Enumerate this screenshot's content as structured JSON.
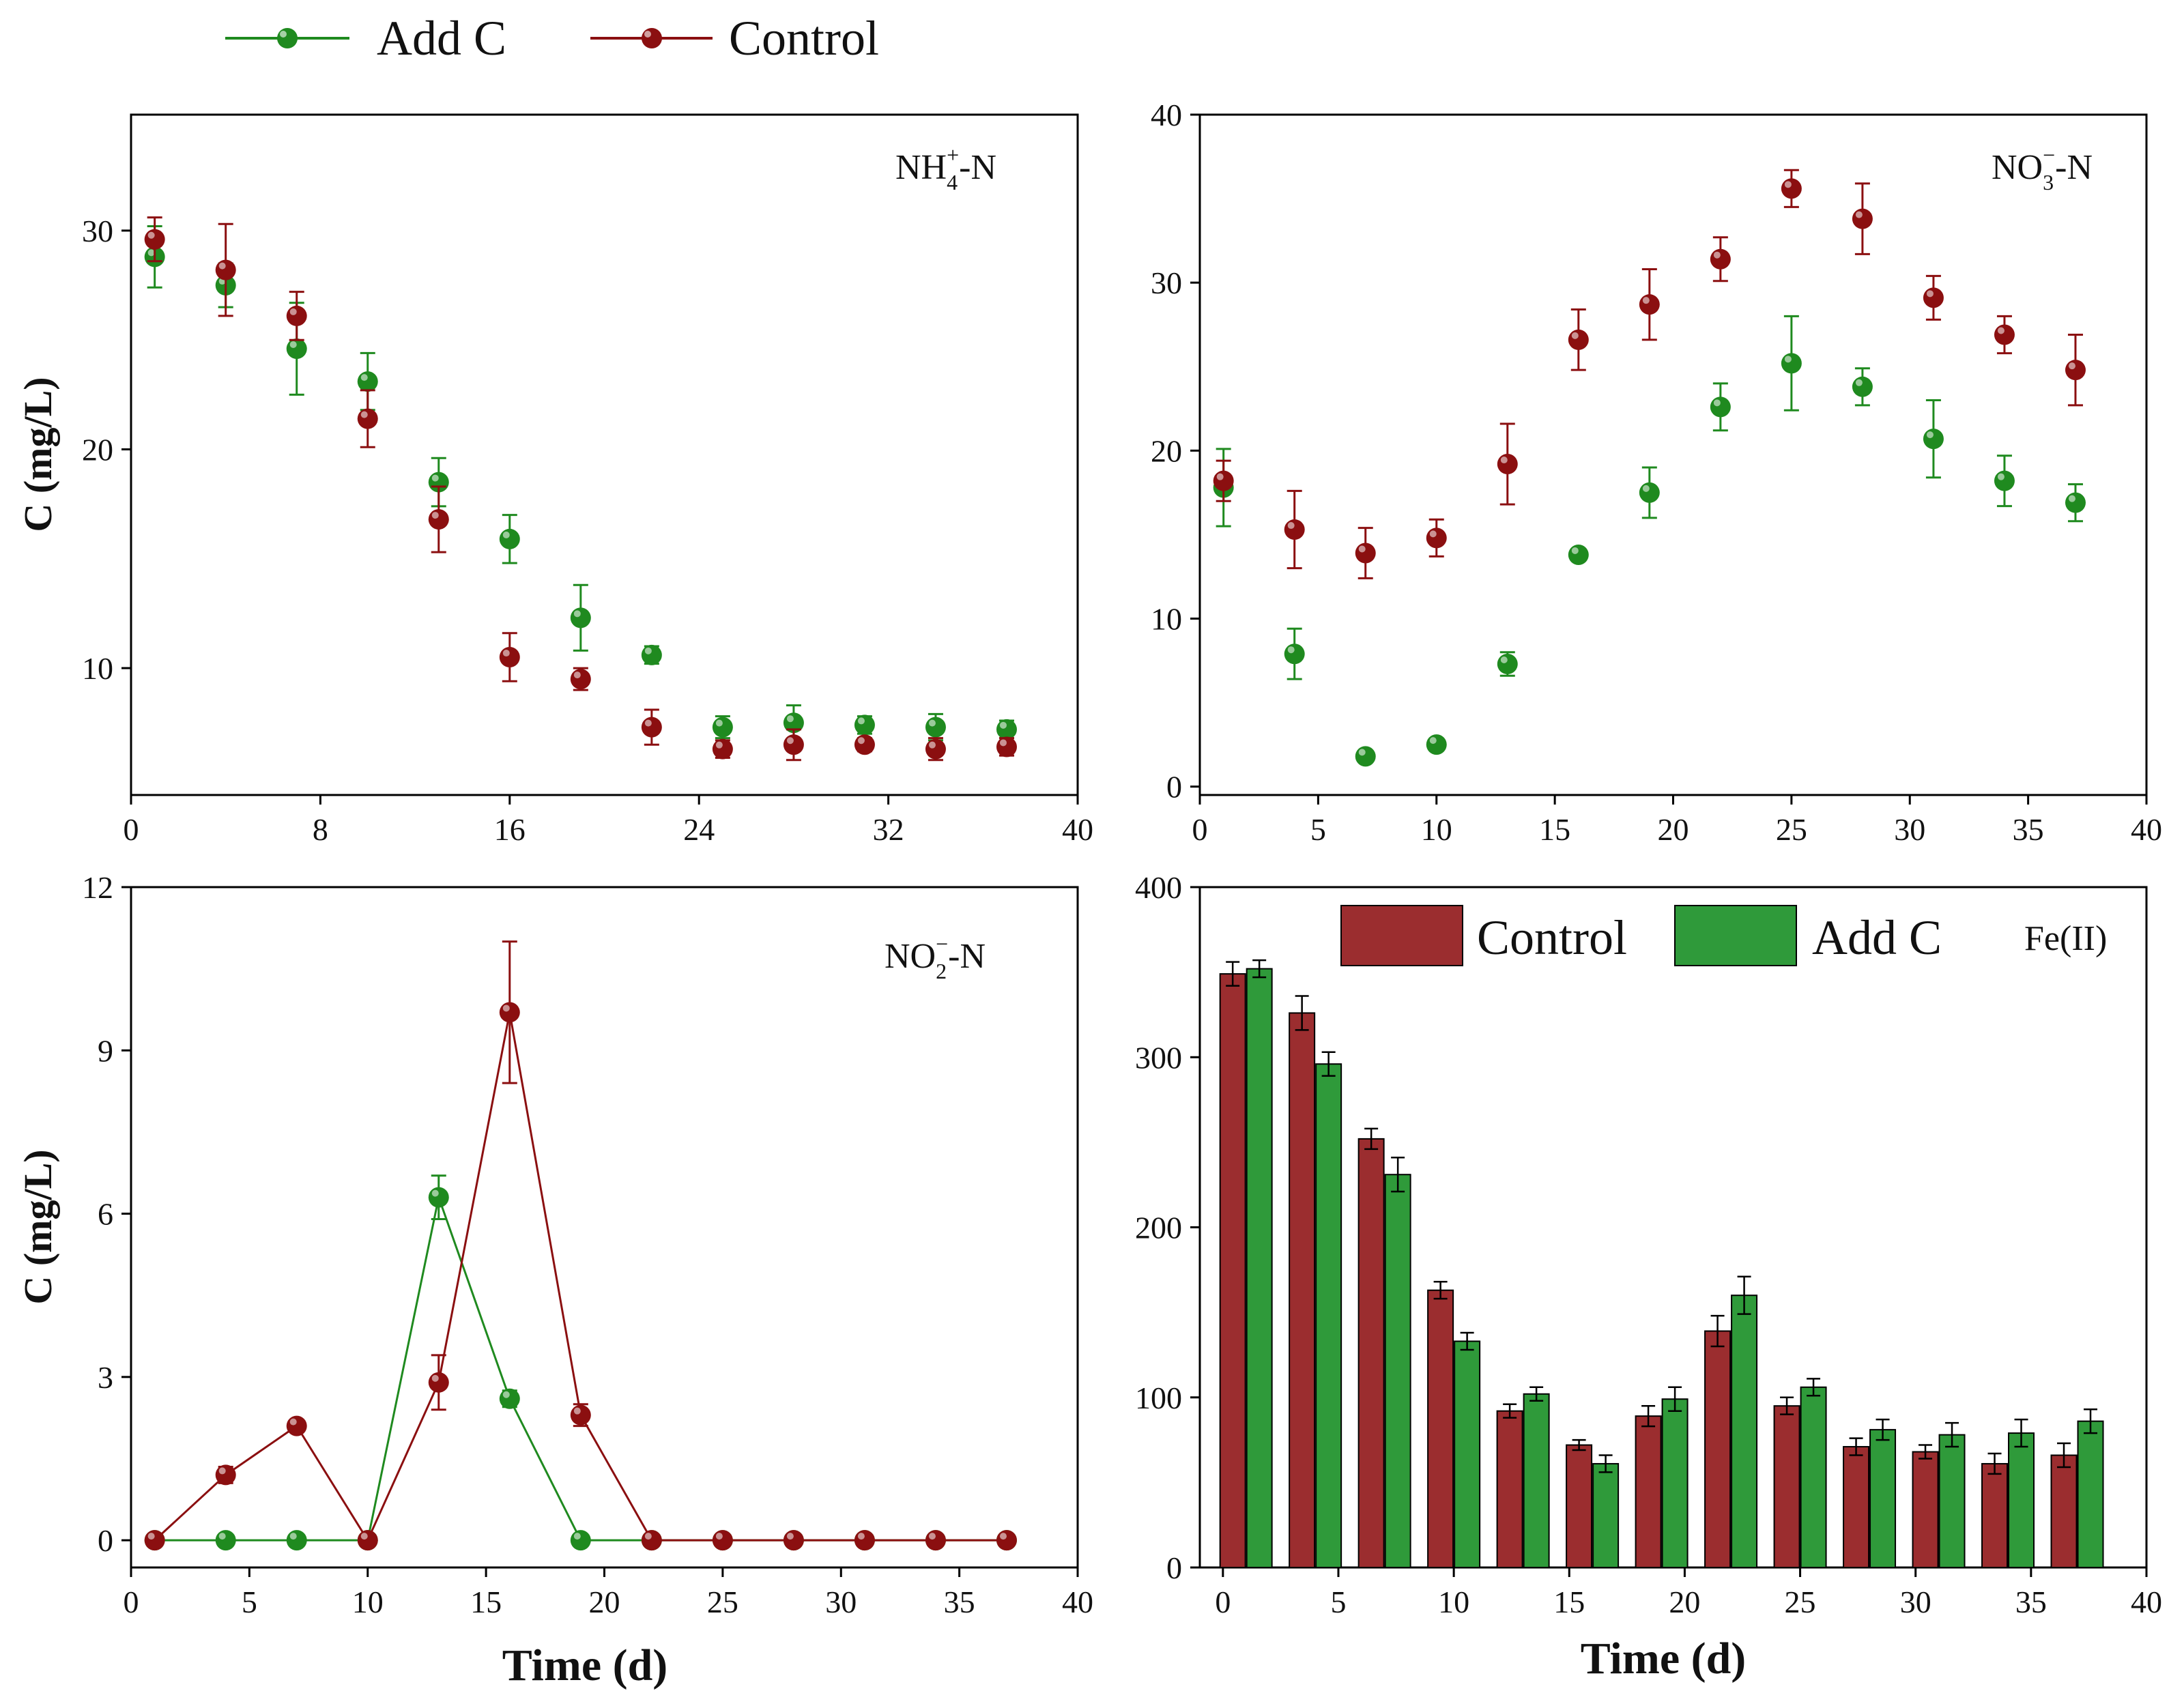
{
  "colors": {
    "add": "#1f8a1f",
    "control": "#8b0f10",
    "bar_control": "#9b2d2f",
    "bar_add": "#2f9a3a",
    "axis": "#000000"
  },
  "legend": {
    "add_label": "Add C",
    "control_label": "Control"
  },
  "panels": {
    "nh4": {
      "sup": "+",
      "sub": "4"
    },
    "no3": {
      "sup": "−",
      "sub": "3"
    },
    "no2": {
      "sup": "−",
      "sub": "2"
    }
  },
  "chart_data": [
    {
      "id": "nh4",
      "type": "scatter",
      "label_main": "NH",
      "label_tail": "-N",
      "ylabel": "C (mg/L)",
      "xlabel": "",
      "xlim": [
        0,
        40
      ],
      "ylim": [
        4.2,
        35.3
      ],
      "xticks": [
        0,
        8,
        16,
        24,
        32,
        40
      ],
      "yticks": [
        10,
        20,
        30
      ],
      "x": [
        1,
        4,
        7,
        10,
        13,
        16,
        19,
        22,
        25,
        28,
        31,
        34,
        37
      ],
      "series": [
        {
          "name": "Add C",
          "values": [
            28.8,
            27.5,
            24.6,
            23.1,
            18.5,
            15.9,
            12.3,
            10.6,
            7.3,
            7.5,
            7.4,
            7.3,
            7.2
          ],
          "errors": [
            1.4,
            1.0,
            2.1,
            1.3,
            1.1,
            1.1,
            1.5,
            0.4,
            0.5,
            0.8,
            0.4,
            0.6,
            0.4
          ]
        },
        {
          "name": "Control",
          "values": [
            29.6,
            28.2,
            26.1,
            21.4,
            16.8,
            10.5,
            9.5,
            7.3,
            6.3,
            6.5,
            6.5,
            6.3,
            6.4
          ],
          "errors": [
            1.0,
            2.1,
            1.1,
            1.3,
            1.5,
            1.1,
            0.5,
            0.8,
            0.4,
            0.7,
            0.3,
            0.5,
            0.4
          ]
        }
      ]
    },
    {
      "id": "no3",
      "type": "scatter",
      "label_main": "NO",
      "label_tail": "-N",
      "ylabel": "",
      "xlabel": "",
      "xlim": [
        0,
        40
      ],
      "ylim": [
        -0.5,
        40
      ],
      "xticks": [
        0,
        5,
        10,
        15,
        20,
        25,
        30,
        35,
        40
      ],
      "yticks": [
        0,
        10,
        20,
        30,
        40
      ],
      "x": [
        1,
        4,
        7,
        10,
        13,
        16,
        19,
        22,
        25,
        28,
        31,
        34,
        37
      ],
      "series": [
        {
          "name": "Add C",
          "values": [
            17.8,
            7.9,
            1.8,
            2.5,
            7.3,
            13.8,
            17.5,
            22.6,
            25.2,
            23.8,
            20.7,
            18.2,
            16.9
          ],
          "errors": [
            2.3,
            1.5,
            0.3,
            0.3,
            0.7,
            0.3,
            1.5,
            1.4,
            2.8,
            1.1,
            2.3,
            1.5,
            1.1
          ]
        },
        {
          "name": "Control",
          "values": [
            18.2,
            15.3,
            13.9,
            14.8,
            19.2,
            26.6,
            28.7,
            31.4,
            35.6,
            33.8,
            29.1,
            26.9,
            24.8
          ],
          "errors": [
            1.2,
            2.3,
            1.5,
            1.1,
            2.4,
            1.8,
            2.1,
            1.3,
            1.1,
            2.1,
            1.3,
            1.1,
            2.1
          ]
        }
      ]
    },
    {
      "id": "no2",
      "type": "line",
      "label_main": "NO",
      "label_tail": "-N",
      "ylabel": "C (mg/L)",
      "xlabel": "Time (d)",
      "xlim": [
        0,
        40
      ],
      "ylim": [
        -0.5,
        12
      ],
      "xticks": [
        0,
        5,
        10,
        15,
        20,
        25,
        30,
        35,
        40
      ],
      "yticks": [
        0,
        3,
        6,
        9,
        12
      ],
      "x": [
        1,
        4,
        7,
        10,
        13,
        16,
        19,
        22,
        25,
        28,
        31,
        34,
        37
      ],
      "series": [
        {
          "name": "Add C",
          "values": [
            0,
            0,
            0,
            0,
            6.3,
            2.6,
            0,
            0,
            0,
            0,
            0,
            0,
            0
          ],
          "errors": [
            0,
            0,
            0,
            0,
            0.4,
            0.15,
            0,
            0,
            0,
            0,
            0,
            0,
            0
          ]
        },
        {
          "name": "Control",
          "values": [
            0,
            1.2,
            2.1,
            0,
            2.9,
            9.7,
            2.3,
            0,
            0,
            0,
            0,
            0,
            0
          ],
          "errors": [
            0,
            0.15,
            0.1,
            0,
            0.5,
            1.3,
            0.2,
            0,
            0,
            0,
            0,
            0,
            0
          ]
        }
      ]
    },
    {
      "id": "fe",
      "type": "bar",
      "label_main": "Fe(II)",
      "ylabel": "",
      "xlabel": "Time (d)",
      "xlim": [
        -1,
        40
      ],
      "ylim": [
        0,
        400
      ],
      "xticks": [
        0,
        5,
        10,
        15,
        20,
        25,
        30,
        35,
        40
      ],
      "yticks": [
        0,
        100,
        200,
        300,
        400
      ],
      "x": [
        1,
        4,
        7,
        10,
        13,
        16,
        19,
        22,
        25,
        28,
        31,
        34,
        37
      ],
      "series": [
        {
          "name": "Control",
          "values": [
            349,
            326,
            252,
            163,
            92,
            72,
            89,
            139,
            95,
            71,
            68,
            61,
            66
          ],
          "errors": [
            7,
            10,
            6,
            5,
            4,
            3,
            6,
            9,
            5,
            5,
            4,
            6,
            7
          ]
        },
        {
          "name": "Add C",
          "values": [
            352,
            296,
            231,
            133,
            102,
            61,
            99,
            160,
            106,
            81,
            78,
            79,
            86
          ],
          "errors": [
            5,
            7,
            10,
            5,
            4,
            5,
            7,
            11,
            5,
            6,
            7,
            8,
            7
          ]
        }
      ]
    }
  ]
}
